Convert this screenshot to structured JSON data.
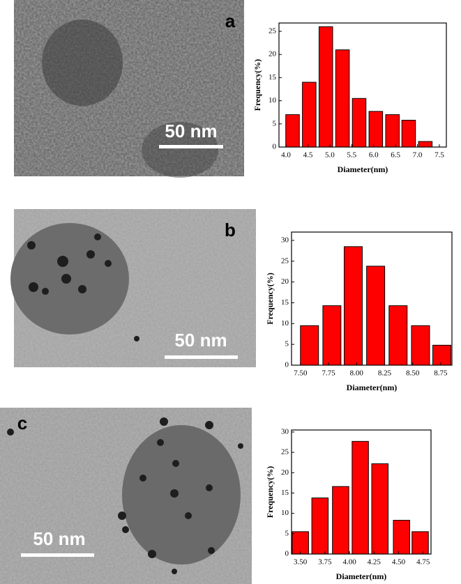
{
  "panels": [
    {
      "label": "a",
      "scale_bar": "50 nm"
    },
    {
      "label": "b",
      "scale_bar": "50 nm"
    },
    {
      "label": "c",
      "scale_bar": "50 nm"
    }
  ],
  "chart_data": [
    {
      "type": "bar",
      "x_label": "Diameter(nm)",
      "y_label": "Frequency(%)",
      "color": "#ff0000",
      "x": [
        4.15,
        4.53,
        4.91,
        5.29,
        5.67,
        6.05,
        6.43,
        6.8,
        7.18
      ],
      "values": [
        7,
        14,
        26,
        21,
        10.5,
        7.7,
        7,
        5.8,
        1.2
      ],
      "xlim": [
        3.84,
        7.66
      ],
      "ylim": [
        0,
        26.8
      ],
      "xticks": [
        {
          "value": 4,
          "label": "4.0"
        },
        4.5,
        {
          "value": 5,
          "label": "5.0"
        },
        5.5,
        {
          "value": 6,
          "label": "6.0"
        },
        6.5,
        {
          "value": 7,
          "label": "7.0"
        },
        7.5
      ],
      "yticks": [
        0,
        5,
        10,
        15,
        20,
        25
      ]
    },
    {
      "type": "bar",
      "x_label": "Diameter(nm)",
      "y_label": "Frequency(%)",
      "color": "#ff0000",
      "x": [
        7.58,
        7.78,
        7.97,
        8.17,
        8.37,
        8.57,
        8.76
      ],
      "values": [
        9.5,
        14.3,
        28.5,
        23.8,
        14.3,
        9.5,
        4.8
      ],
      "xlim": [
        7.42,
        8.85
      ],
      "ylim": [
        0,
        32
      ],
      "xticks": [
        {
          "value": 7.5,
          "label": "7.50"
        },
        7.75,
        {
          "value": 8,
          "label": "8.00"
        },
        8.25,
        {
          "value": 8.5,
          "label": "8.50"
        },
        8.75
      ],
      "yticks": [
        0,
        5,
        10,
        15,
        20,
        25,
        30
      ]
    },
    {
      "type": "bar",
      "x_label": "Diameter(nm)",
      "y_label": "Frequency(%)",
      "color": "#ff0000",
      "x": [
        3.5,
        3.7,
        3.91,
        4.11,
        4.31,
        4.53,
        4.72
      ],
      "values": [
        5.5,
        13.8,
        16.6,
        27.7,
        22.2,
        8.3,
        5.5
      ],
      "xlim": [
        3.41,
        4.83
      ],
      "ylim": [
        0,
        30.5
      ],
      "xticks": [
        {
          "value": 3.5,
          "label": "3.50"
        },
        3.75,
        {
          "value": 4,
          "label": "4.00"
        },
        4.25,
        {
          "value": 4.5,
          "label": "4.50"
        },
        4.75
      ],
      "yticks": [
        0,
        5,
        10,
        15,
        20,
        25,
        30
      ]
    }
  ]
}
